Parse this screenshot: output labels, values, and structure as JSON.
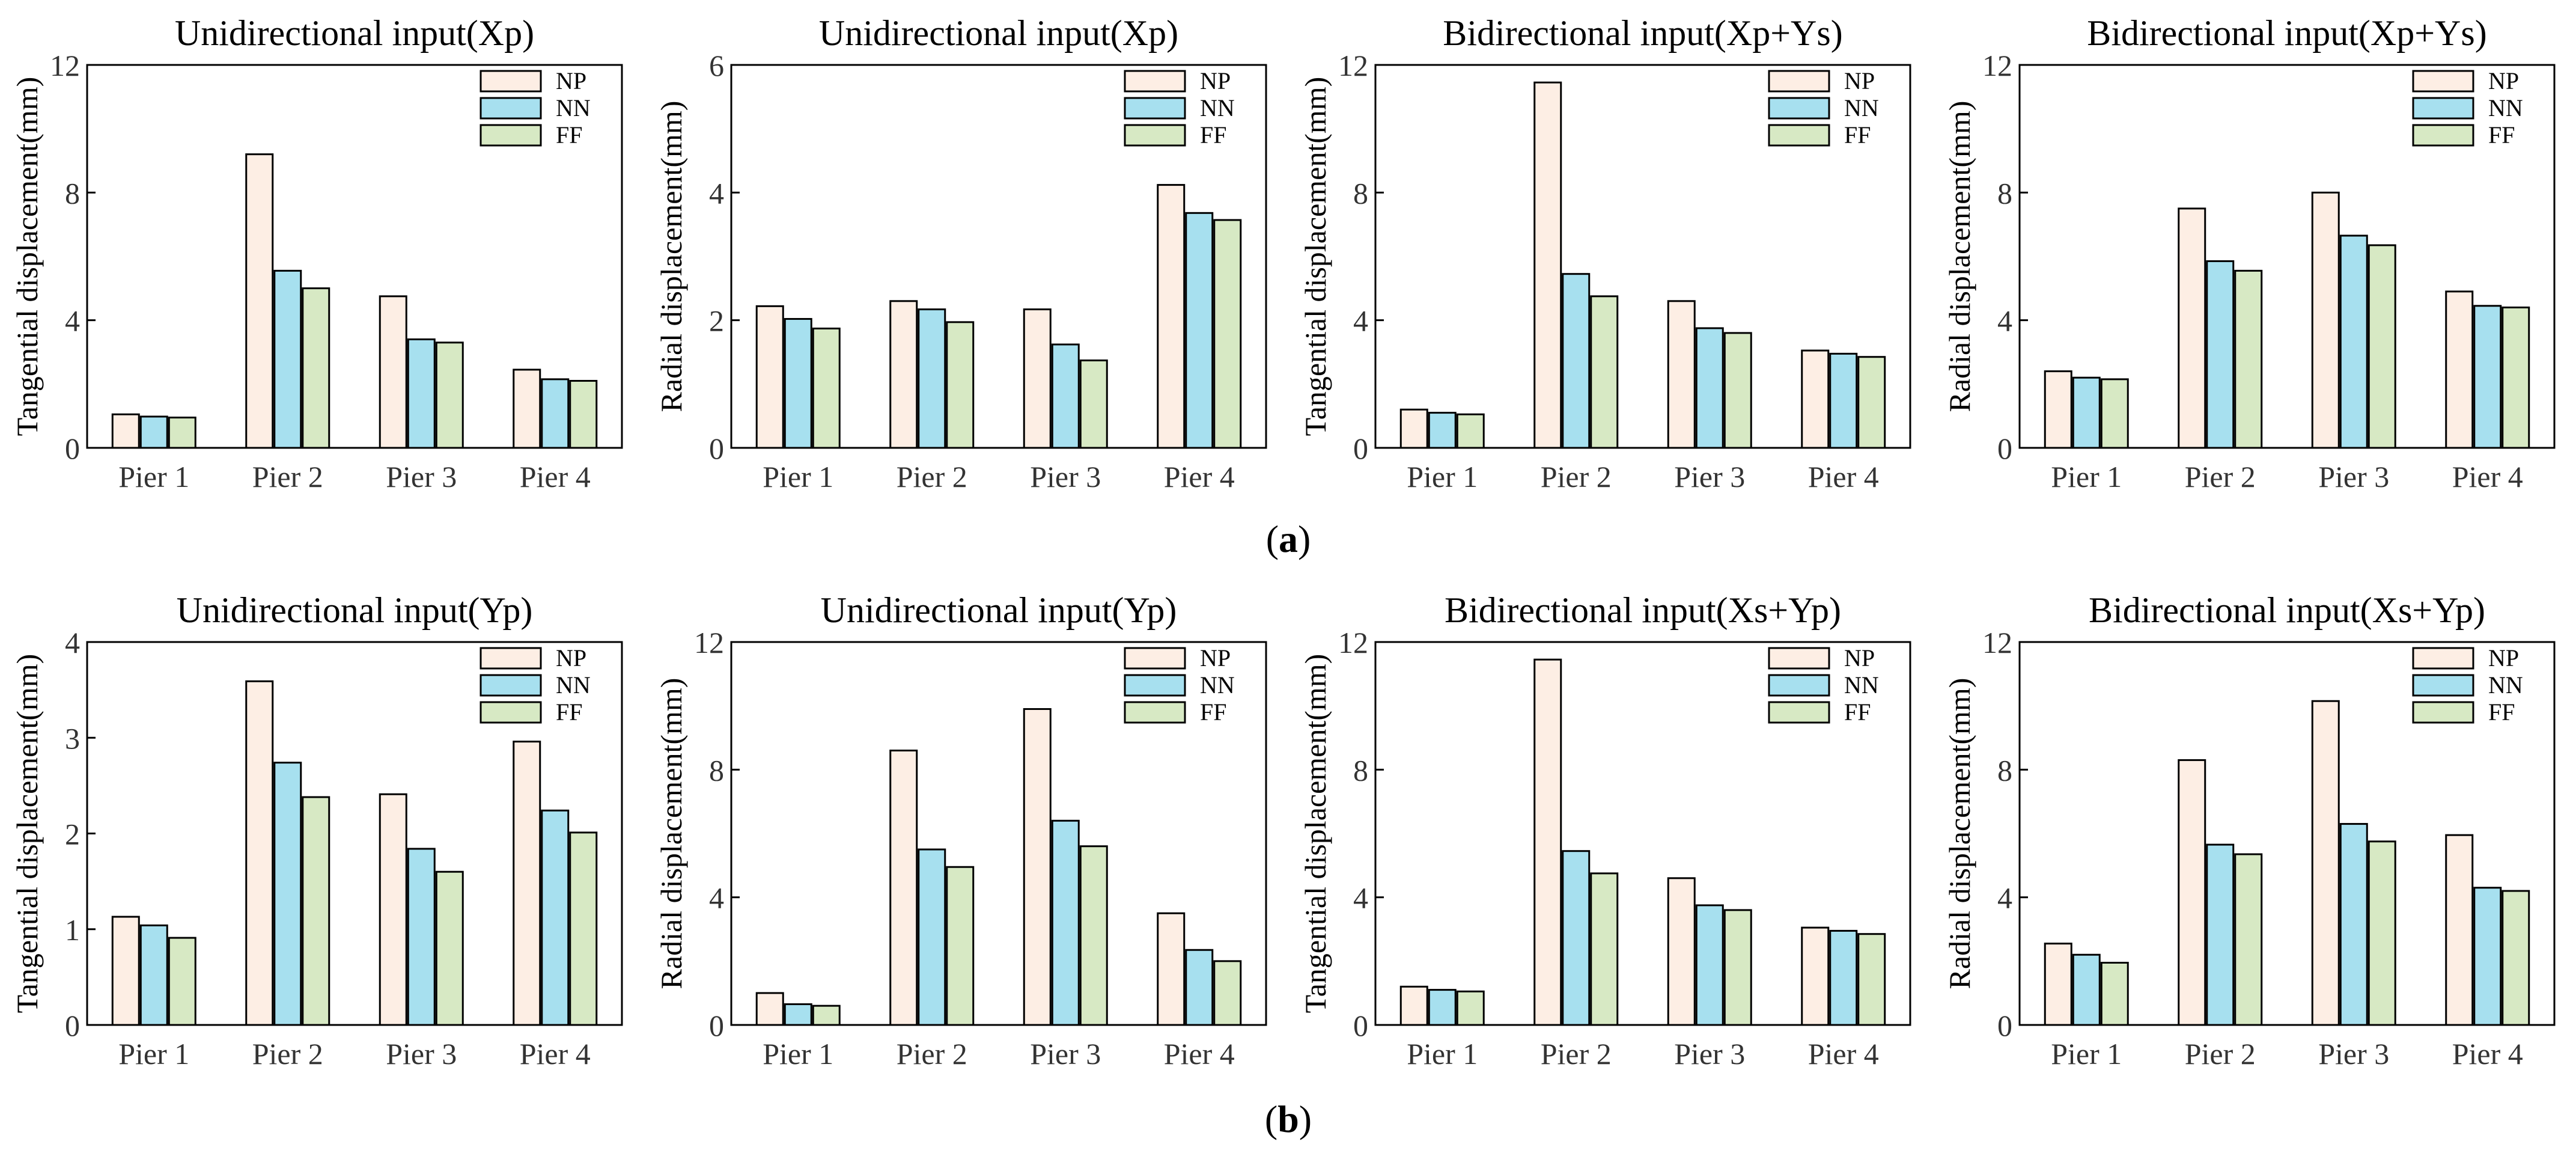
{
  "colors": {
    "NP": "#fdeee4",
    "NN": "#a7e0ef",
    "FF": "#d7e9c4",
    "stroke": "#000000"
  },
  "panel_labels": {
    "a": "a",
    "b": "b"
  },
  "chart_data": [
    {
      "type": "bar",
      "row": "a",
      "title": "Unidirectional input(Xp)",
      "ylabel": "Tangential displacement(mm)",
      "xlabel": "",
      "categories": [
        "Pier 1",
        "Pier 2",
        "Pier 3",
        "Pier 4"
      ],
      "ylim": [
        0,
        12
      ],
      "yticks": [
        0,
        4,
        8,
        12
      ],
      "legend": [
        "NP",
        "NN",
        "FF"
      ],
      "legend_position": "top-right",
      "series": [
        {
          "name": "NP",
          "values": [
            1.05,
            9.2,
            4.75,
            2.45
          ]
        },
        {
          "name": "NN",
          "values": [
            0.98,
            5.55,
            3.4,
            2.15
          ]
        },
        {
          "name": "FF",
          "values": [
            0.95,
            5.0,
            3.3,
            2.1
          ]
        }
      ]
    },
    {
      "type": "bar",
      "row": "a",
      "title": "Unidirectional input(Xp)",
      "ylabel": "Radial displacement(mm)",
      "xlabel": "",
      "categories": [
        "Pier 1",
        "Pier 2",
        "Pier 3",
        "Pier 4"
      ],
      "ylim": [
        0,
        6
      ],
      "yticks": [
        0,
        2,
        4,
        6
      ],
      "legend": [
        "NP",
        "NN",
        "FF"
      ],
      "legend_position": "top-right",
      "series": [
        {
          "name": "NP",
          "values": [
            2.22,
            2.3,
            2.17,
            4.12
          ]
        },
        {
          "name": "NN",
          "values": [
            2.02,
            2.17,
            1.62,
            3.68
          ]
        },
        {
          "name": "FF",
          "values": [
            1.87,
            1.97,
            1.37,
            3.57
          ]
        }
      ]
    },
    {
      "type": "bar",
      "row": "a",
      "title": "Bidirectional input(Xp+Ys)",
      "ylabel": "Tangential displacement(mm)",
      "xlabel": "",
      "categories": [
        "Pier 1",
        "Pier 2",
        "Pier 3",
        "Pier 4"
      ],
      "ylim": [
        0,
        12
      ],
      "yticks": [
        0,
        4,
        8,
        12
      ],
      "legend": [
        "NP",
        "NN",
        "FF"
      ],
      "legend_position": "top-right",
      "series": [
        {
          "name": "NP",
          "values": [
            1.2,
            11.45,
            4.6,
            3.05
          ]
        },
        {
          "name": "NN",
          "values": [
            1.1,
            5.45,
            3.75,
            2.95
          ]
        },
        {
          "name": "FF",
          "values": [
            1.05,
            4.75,
            3.6,
            2.85
          ]
        }
      ]
    },
    {
      "type": "bar",
      "row": "a",
      "title": "Bidirectional input(Xp+Ys)",
      "ylabel": "Radial displacement(mm)",
      "xlabel": "",
      "categories": [
        "Pier 1",
        "Pier 2",
        "Pier 3",
        "Pier 4"
      ],
      "ylim": [
        0,
        12
      ],
      "yticks": [
        0,
        4,
        8,
        12
      ],
      "legend": [
        "NP",
        "NN",
        "FF"
      ],
      "legend_position": "top-right",
      "series": [
        {
          "name": "NP",
          "values": [
            2.4,
            7.5,
            8.0,
            4.9
          ]
        },
        {
          "name": "NN",
          "values": [
            2.2,
            5.85,
            6.65,
            4.45
          ]
        },
        {
          "name": "FF",
          "values": [
            2.15,
            5.55,
            6.35,
            4.4
          ]
        }
      ]
    },
    {
      "type": "bar",
      "row": "b",
      "title": "Unidirectional  input(Yp)",
      "ylabel": "Tangential displacement(mm)",
      "xlabel": "",
      "categories": [
        "Pier 1",
        "Pier 2",
        "Pier 3",
        "Pier 4"
      ],
      "ylim": [
        0,
        4
      ],
      "yticks": [
        0,
        1,
        2,
        3,
        4
      ],
      "legend": [
        "NP",
        "NN",
        "FF"
      ],
      "legend_position": "top-right",
      "series": [
        {
          "name": "NP",
          "values": [
            1.13,
            3.59,
            2.41,
            2.96
          ]
        },
        {
          "name": "NN",
          "values": [
            1.04,
            2.74,
            1.84,
            2.24
          ]
        },
        {
          "name": "FF",
          "values": [
            0.91,
            2.38,
            1.6,
            2.01
          ]
        }
      ]
    },
    {
      "type": "bar",
      "row": "b",
      "title": "Unidirectional  input(Yp)",
      "ylabel": "Radial displacement(mm)",
      "xlabel": "",
      "categories": [
        "Pier 1",
        "Pier 2",
        "Pier 3",
        "Pier 4"
      ],
      "ylim": [
        0,
        12
      ],
      "yticks": [
        0,
        4,
        8,
        12
      ],
      "legend": [
        "NP",
        "NN",
        "FF"
      ],
      "legend_position": "top-right",
      "series": [
        {
          "name": "NP",
          "values": [
            1.0,
            8.6,
            9.9,
            3.5
          ]
        },
        {
          "name": "NN",
          "values": [
            0.65,
            5.5,
            6.4,
            2.35
          ]
        },
        {
          "name": "FF",
          "values": [
            0.6,
            4.95,
            5.6,
            2.0
          ]
        }
      ]
    },
    {
      "type": "bar",
      "row": "b",
      "title": "Bidirectional input(Xs+Yp)",
      "ylabel": "Tangential displacement(mm)",
      "xlabel": "",
      "categories": [
        "Pier 1",
        "Pier 2",
        "Pier 3",
        "Pier 4"
      ],
      "ylim": [
        0,
        12
      ],
      "yticks": [
        0,
        4,
        8,
        12
      ],
      "legend": [
        "NP",
        "NN",
        "FF"
      ],
      "legend_position": "top-right",
      "series": [
        {
          "name": "NP",
          "values": [
            1.2,
            11.45,
            4.6,
            3.05
          ]
        },
        {
          "name": "NN",
          "values": [
            1.1,
            5.45,
            3.75,
            2.95
          ]
        },
        {
          "name": "FF",
          "values": [
            1.05,
            4.75,
            3.6,
            2.85
          ]
        }
      ]
    },
    {
      "type": "bar",
      "row": "b",
      "title": "Bidirectional input(Xs+Yp)",
      "ylabel": "Radial displacement(mm)",
      "xlabel": "",
      "categories": [
        "Pier 1",
        "Pier 2",
        "Pier 3",
        "Pier 4"
      ],
      "ylim": [
        0,
        12
      ],
      "yticks": [
        0,
        4,
        8,
        12
      ],
      "legend": [
        "NP",
        "NN",
        "FF"
      ],
      "legend_position": "top-right",
      "series": [
        {
          "name": "NP",
          "values": [
            2.55,
            8.3,
            10.15,
            5.95
          ]
        },
        {
          "name": "NN",
          "values": [
            2.2,
            5.65,
            6.3,
            4.3
          ]
        },
        {
          "name": "FF",
          "values": [
            1.95,
            5.35,
            5.75,
            4.2
          ]
        }
      ]
    }
  ]
}
